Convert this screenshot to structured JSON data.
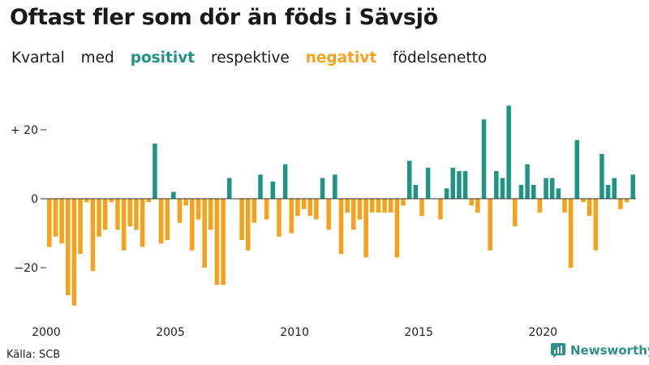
{
  "title": "Oftast fler som dör än föds i Sävsjö",
  "subtitle": {
    "word1": "Kvartal",
    "word2": "med",
    "positive_label": "positivt",
    "word3": "respektive",
    "negative_label": "negativt",
    "word4": "födelsenetto"
  },
  "source": "Källa: SCB",
  "brand": "Newsworthy",
  "colors": {
    "positive": "#1f9485",
    "negative": "#f5a11a",
    "axis": "#333333",
    "brand": "#2f8f86"
  },
  "chart_data": {
    "type": "bar",
    "title": "Oftast fler som dör än föds i Sävsjö",
    "xlabel": "",
    "ylabel": "",
    "ylim": [
      -33,
      30
    ],
    "yticks": [
      {
        "value": 20,
        "label": "+ 20"
      },
      {
        "value": 0,
        "label": "0"
      },
      {
        "value": -20,
        "label": "−20"
      }
    ],
    "xticks": [
      {
        "year": 2000,
        "label": "2000"
      },
      {
        "year": 2005,
        "label": "2005"
      },
      {
        "year": 2010,
        "label": "2010"
      },
      {
        "year": 2015,
        "label": "2015"
      },
      {
        "year": 2020,
        "label": "2020"
      }
    ],
    "start_year": 2000,
    "grid": false,
    "values": [
      -14,
      -11,
      -13,
      -28,
      -31,
      -16,
      -1,
      -21,
      -11,
      -9,
      -1,
      -9,
      -15,
      -8,
      -9,
      -14,
      -1,
      16,
      -13,
      -12,
      2,
      -7,
      -2,
      -15,
      -6,
      -20,
      -9,
      -25,
      -25,
      6,
      0,
      -12,
      -15,
      -7,
      7,
      -6,
      5,
      -11,
      10,
      -10,
      -5,
      -3,
      -5,
      -6,
      6,
      -9,
      7,
      -16,
      -4,
      -9,
      -6,
      -17,
      -4,
      -4,
      -4,
      -4,
      -17,
      -2,
      11,
      4,
      -5,
      9,
      0,
      -6,
      3,
      9,
      8,
      8,
      -2,
      -4,
      23,
      -15,
      8,
      6,
      27,
      -8,
      4,
      10,
      4,
      -4,
      6,
      6,
      3,
      -4,
      -20,
      17,
      -1,
      -5,
      -15,
      13,
      4,
      6,
      -3,
      -1,
      7
    ]
  }
}
